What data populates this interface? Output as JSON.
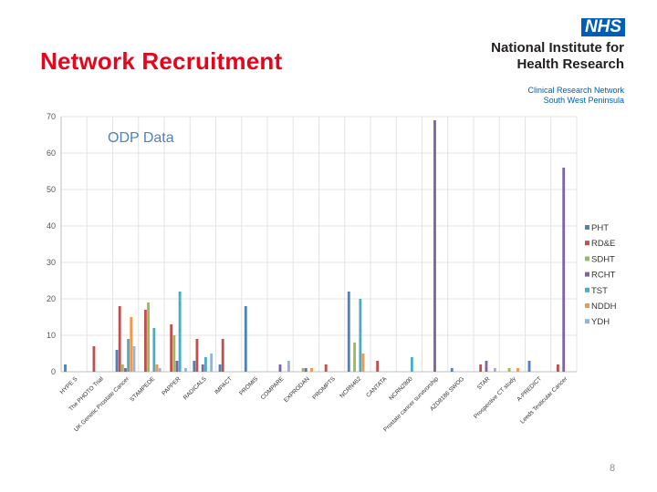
{
  "slide": {
    "title": "Network Recruitment",
    "page_number": "8"
  },
  "logo": {
    "badge": "NHS",
    "org_line1": "National Institute for",
    "org_line2": "Health Research",
    "network_line1": "Clinical Research Network",
    "network_line2": "South West Peninsula",
    "badge_color": "#005eb8",
    "title_color": "#e4061c"
  },
  "chart_data": {
    "type": "bar",
    "title": "ODP Data",
    "ylim": [
      0,
      70
    ],
    "yticks": [
      0,
      10,
      20,
      30,
      40,
      50,
      60,
      70
    ],
    "grid": true,
    "legend_position": "right",
    "categories": [
      "HYPE S",
      "The PHOTO Trial",
      "UK Genetic Prostate Cancer",
      "STAMPEDE",
      "PAPPER",
      "RADICALS",
      "IMPACT",
      "PROMIS",
      "COMPARE",
      "EXPRODAN",
      "PROMPTS",
      "NCRN462",
      "CANTATA",
      "NCRN2800",
      "Prostate cancer survivorship",
      "AZD8186 SWOG",
      "STAR",
      "Prospective CT study",
      "A-PREDICT",
      "Leeds Testicular Cancer"
    ],
    "series": [
      {
        "name": "PHT",
        "color": "#4f81bd",
        "values": [
          2,
          0,
          6,
          0,
          0,
          3,
          2,
          18,
          0,
          0,
          0,
          22,
          0,
          0,
          0,
          1,
          0,
          0,
          3,
          0
        ]
      },
      {
        "name": "RD&E",
        "color": "#c0504d",
        "values": [
          0,
          7,
          18,
          17,
          13,
          9,
          9,
          0,
          0,
          0,
          2,
          0,
          3,
          0,
          0,
          0,
          2,
          0,
          0,
          2
        ]
      },
      {
        "name": "SDHT",
        "color": "#9bbb59",
        "values": [
          0,
          0,
          2,
          19,
          10,
          0,
          0,
          0,
          0,
          1,
          0,
          8,
          0,
          0,
          0,
          0,
          0,
          1,
          0,
          0
        ]
      },
      {
        "name": "RCHT",
        "color": "#8064a2",
        "values": [
          0,
          0,
          1,
          0,
          3,
          2,
          0,
          0,
          2,
          1,
          0,
          0,
          0,
          0,
          69,
          0,
          3,
          0,
          0,
          56
        ]
      },
      {
        "name": "TST",
        "color": "#4bacc6",
        "values": [
          0,
          0,
          9,
          12,
          22,
          4,
          0,
          0,
          0,
          0,
          0,
          20,
          0,
          4,
          0,
          0,
          0,
          0,
          0,
          0
        ]
      },
      {
        "name": "NDDH",
        "color": "#f79646",
        "values": [
          0,
          0,
          15,
          2,
          0,
          0,
          0,
          0,
          0,
          1,
          0,
          5,
          0,
          0,
          0,
          0,
          0,
          1,
          0,
          0
        ]
      },
      {
        "name": "YDH",
        "color": "#95b3d7",
        "values": [
          0,
          0,
          7,
          1,
          1,
          5,
          0,
          0,
          3,
          0,
          0,
          0,
          0,
          0,
          0,
          0,
          1,
          0,
          0,
          0
        ]
      }
    ]
  }
}
